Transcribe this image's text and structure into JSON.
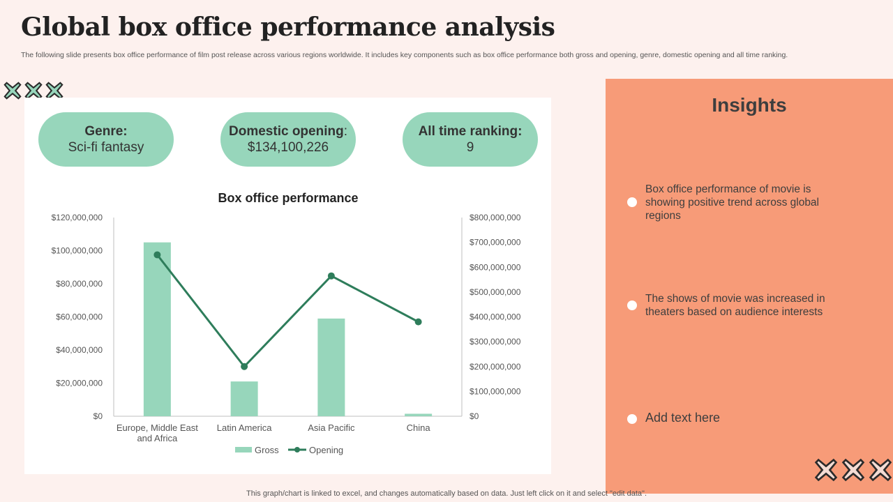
{
  "header": {
    "title": "Global box office performance analysis",
    "subtitle": "The following slide presents box office performance of film post release across various regions worldwide. It includes key components such as box office performance both gross and opening, genre, domestic opening and all time ranking."
  },
  "cards": {
    "genre": {
      "label": "Genre:",
      "value": "Sci-fi fantasy"
    },
    "domestic": {
      "label": "Domestic opening",
      "colon": ":",
      "value": "$134,100,226"
    },
    "ranking": {
      "label": "All time ranking:",
      "value": "9"
    }
  },
  "insights": {
    "title": "Insights",
    "items": [
      "Box office performance of movie is showing positive trend across global regions",
      "The shows of movie was increased in theaters based on audience interests",
      "Add text here"
    ]
  },
  "footer": "This graph/chart is linked to excel,  and changes automatically based on data. Just left click on it and select \"edit data\".",
  "colors": {
    "bar": "#97d6bb",
    "line": "#2e7d5b",
    "pill": "#97d6bb",
    "panel": "#f79b78",
    "background": "#fdf1ee"
  },
  "icons": {
    "decoration": "x-cross-icon"
  },
  "chart_data": {
    "type": "bar+line",
    "title": "Box office performance",
    "categories": [
      "Europe, Middle East and Africa",
      "Latin America",
      "Asia Pacific",
      "China"
    ],
    "category_lines": [
      [
        "Europe, Middle East",
        "and Africa"
      ],
      [
        "Latin America"
      ],
      [
        "Asia Pacific"
      ],
      [
        "China"
      ]
    ],
    "series": [
      {
        "name": "Gross",
        "type": "bar",
        "axis": "left",
        "values": [
          105000000,
          21000000,
          59000000,
          1500000
        ]
      },
      {
        "name": "Opening",
        "type": "line",
        "axis": "right",
        "values": [
          650000000,
          200000000,
          565000000,
          380000000
        ]
      }
    ],
    "left_axis": {
      "ylim": [
        0,
        120000000
      ],
      "ticks": [
        "$0",
        "$20,000,000",
        "$40,000,000",
        "$60,000,000",
        "$80,000,000",
        "$100,000,000",
        "$120,000,000"
      ]
    },
    "right_axis": {
      "ylim": [
        0,
        800000000
      ],
      "ticks": [
        "$0",
        "$100,000,000",
        "$200,000,000",
        "$300,000,000",
        "$400,000,000",
        "$500,000,000",
        "$600,000,000",
        "$700,000,000",
        "$800,000,000"
      ]
    },
    "legend": {
      "position": "bottom",
      "entries": [
        "Gross",
        "Opening"
      ]
    },
    "grid": false
  }
}
